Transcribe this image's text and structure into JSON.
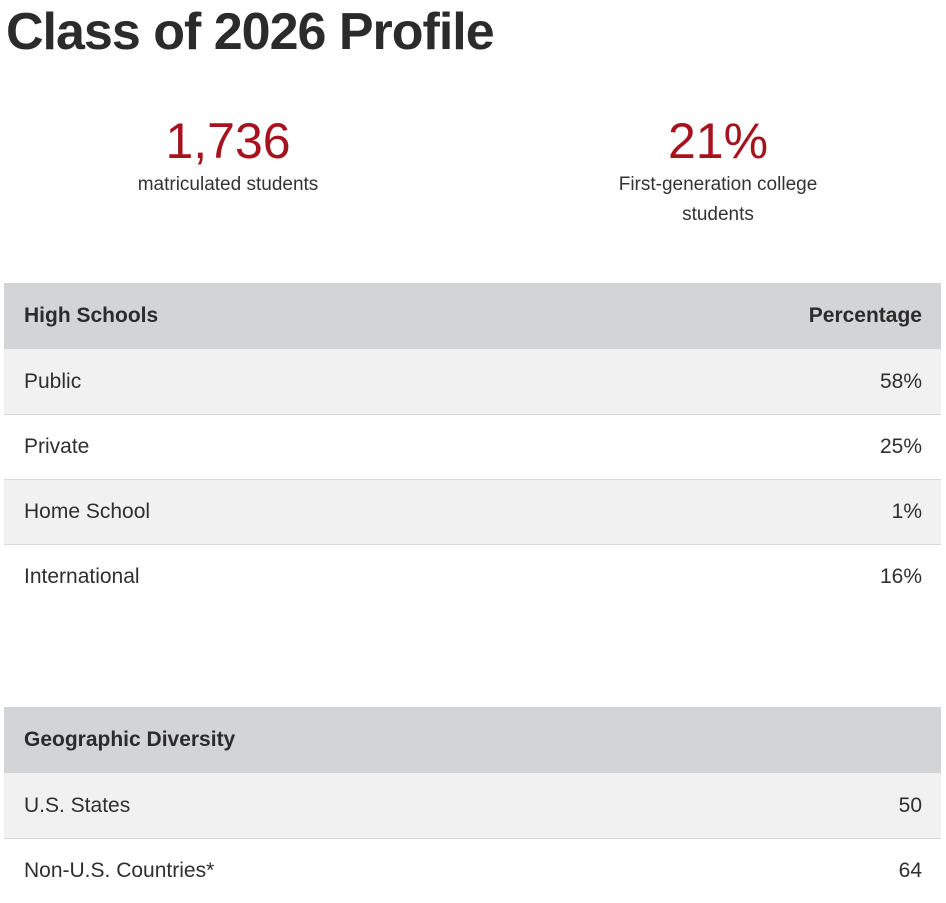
{
  "title": "Class of 2026 Profile",
  "stats": [
    {
      "value": "1,736",
      "label": "matriculated students"
    },
    {
      "value": "21%",
      "label": "First-generation college students"
    }
  ],
  "high_schools": {
    "header": {
      "label": "High Schools",
      "value": "Percentage"
    },
    "rows": [
      {
        "label": "Public",
        "value": "58%"
      },
      {
        "label": "Private",
        "value": "25%"
      },
      {
        "label": "Home School",
        "value": "1%"
      },
      {
        "label": "International",
        "value": "16%"
      }
    ]
  },
  "geographic": {
    "header": {
      "label": "Geographic Diversity"
    },
    "rows": [
      {
        "label": "U.S. States",
        "value": "50"
      },
      {
        "label": "Non-U.S. Countries*",
        "value": "64"
      }
    ]
  },
  "colors": {
    "accent": "#a6121d",
    "header_bg": "#d3d4d6",
    "row_shade": "#f1f1f1"
  }
}
